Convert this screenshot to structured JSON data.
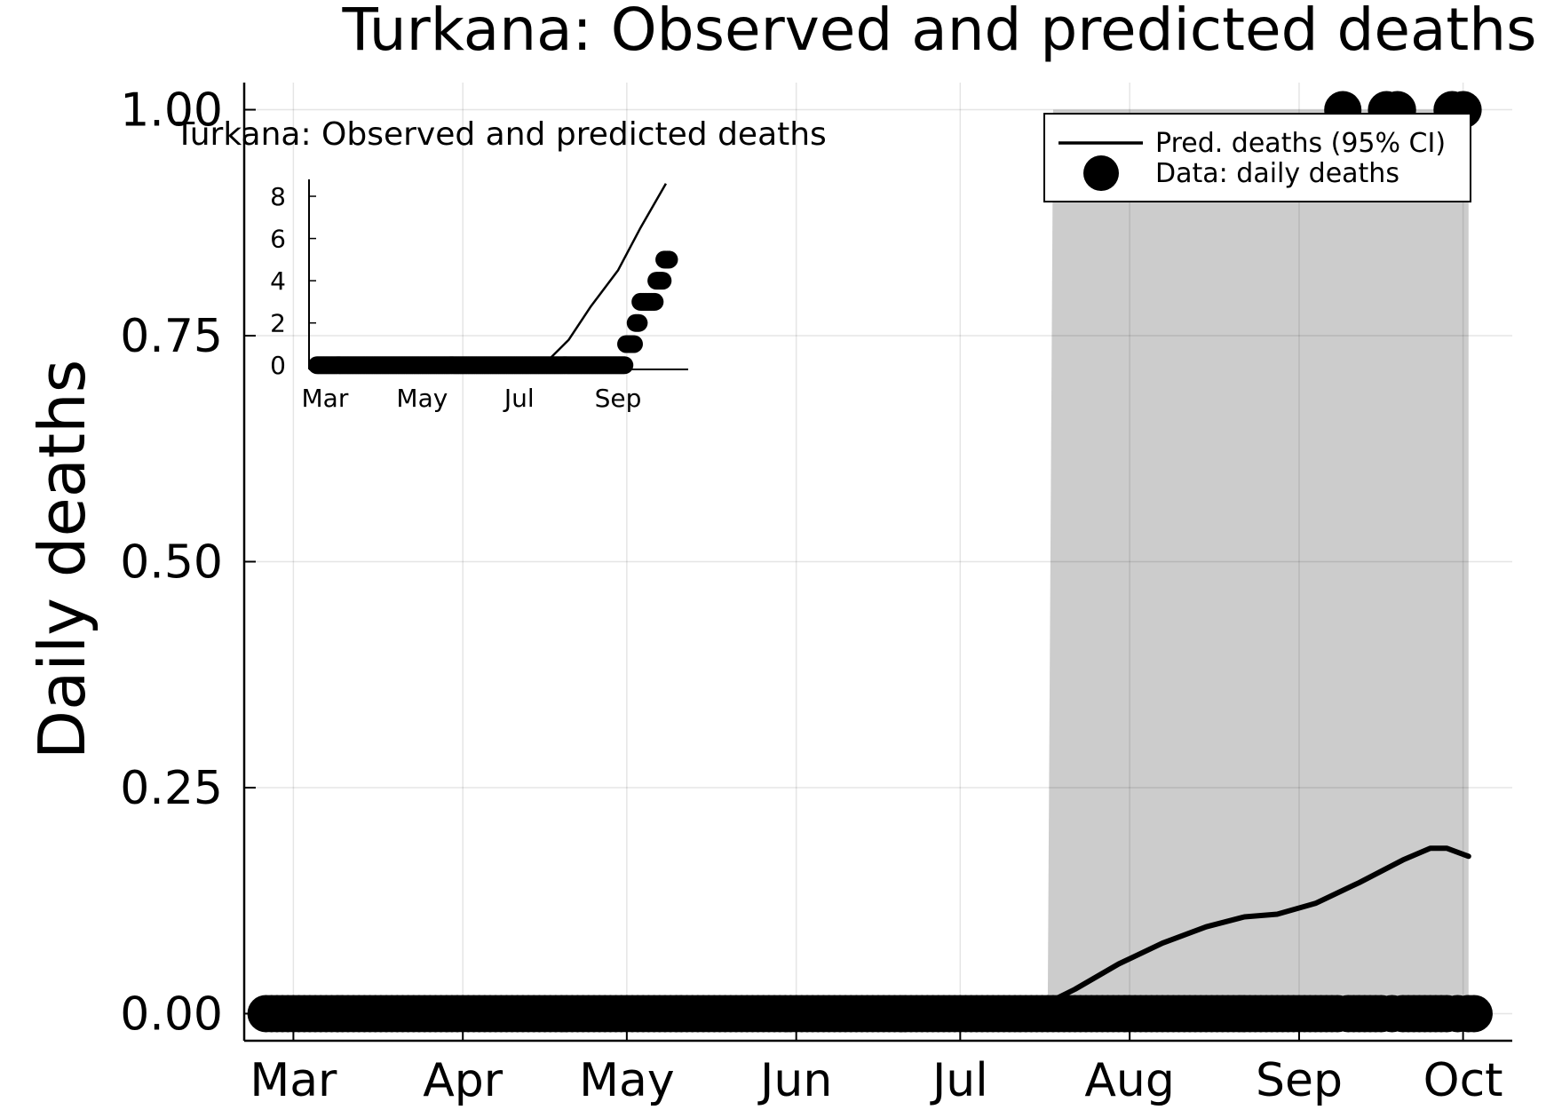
{
  "chart_data": [
    {
      "type": "line",
      "title": "Turkana: Observed and predicted deaths",
      "xlabel": "",
      "ylabel": "Daily deaths",
      "x_tick_labels": [
        "Mar",
        "Apr",
        "May",
        "Jun",
        "Jul",
        "Aug",
        "Sep",
        "Oct"
      ],
      "x_ticks": [
        "2020-03-01",
        "2020-04-01",
        "2020-05-01",
        "2020-06-01",
        "2020-07-01",
        "2020-08-01",
        "2020-09-01",
        "2020-10-01"
      ],
      "xlim": [
        "2020-02-21",
        "2020-10-10"
      ],
      "y_tick_labels": [
        "0.00",
        "0.25",
        "0.50",
        "0.75",
        "1.00"
      ],
      "y_ticks": [
        0,
        0.25,
        0.5,
        0.75,
        1.0
      ],
      "ylim": [
        -0.03,
        1.03
      ],
      "grid": true,
      "legend": "top-right",
      "legend_entries": [
        "Pred. deaths (95% CI)",
        "Data: daily deaths"
      ],
      "band": {
        "name": "Pred. deaths (95% CI)",
        "x": [
          "2020-07-17",
          "2020-07-18",
          "2020-10-02"
        ],
        "lower": [
          0,
          0,
          0
        ],
        "upper": [
          0,
          1.0,
          1.0
        ]
      },
      "series": [
        {
          "name": "Pred. deaths (95% CI)",
          "type": "line",
          "color": "#000000",
          "x": [
            "2020-02-25",
            "2020-07-13",
            "2020-07-22",
            "2020-07-30",
            "2020-08-07",
            "2020-08-15",
            "2020-08-22",
            "2020-08-28",
            "2020-09-04",
            "2020-09-12",
            "2020-09-20",
            "2020-09-25",
            "2020-09-28",
            "2020-10-02"
          ],
          "y": [
            0,
            0,
            0.027,
            0.055,
            0.078,
            0.096,
            0.107,
            0.11,
            0.122,
            0.145,
            0.17,
            0.183,
            0.183,
            0.174
          ]
        },
        {
          "name": "Data: daily deaths",
          "type": "scatter",
          "color": "#000000",
          "x_start": "2020-02-25",
          "x_end": "2020-10-03",
          "baseline_y": 0,
          "ones": [
            "2020-09-09",
            "2020-09-17",
            "2020-09-19",
            "2020-09-29",
            "2020-10-01"
          ]
        }
      ]
    },
    {
      "type": "line",
      "title": "Turkana: Observed and predicted deaths",
      "x_tick_labels": [
        "Mar",
        "May",
        "Jul",
        "Sep"
      ],
      "x_ticks": [
        "2020-03-01",
        "2020-05-01",
        "2020-07-01",
        "2020-09-01"
      ],
      "xlim": [
        "2020-02-20",
        "2020-10-15"
      ],
      "y_tick_labels": [
        "0",
        "2",
        "4",
        "6",
        "8"
      ],
      "y_ticks": [
        0,
        2,
        4,
        6,
        8
      ],
      "ylim": [
        -0.2,
        8.8
      ],
      "grid": false,
      "series": [
        {
          "name": "Pred. deaths (95% CI)",
          "type": "line",
          "x": [
            "2020-02-25",
            "2020-07-10",
            "2020-07-20",
            "2020-08-01",
            "2020-08-15",
            "2020-09-01",
            "2020-09-15",
            "2020-10-01"
          ],
          "y": [
            0,
            0,
            0.3,
            1.2,
            2.8,
            4.5,
            6.5,
            8.6
          ]
        },
        {
          "name": "Data: daily deaths",
          "type": "scatter",
          "points": [
            {
              "x_start": "2020-02-25",
              "x_end": "2020-09-05",
              "y": 0
            },
            {
              "x_start": "2020-09-06",
              "x_end": "2020-09-11",
              "y": 1
            },
            {
              "x_start": "2020-09-12",
              "x_end": "2020-09-14",
              "y": 2
            },
            {
              "x_start": "2020-09-15",
              "x_end": "2020-09-24",
              "y": 3
            },
            {
              "x_start": "2020-09-25",
              "x_end": "2020-09-29",
              "y": 4
            },
            {
              "x_start": "2020-09-30",
              "x_end": "2020-10-03",
              "y": 5
            }
          ]
        }
      ]
    }
  ]
}
